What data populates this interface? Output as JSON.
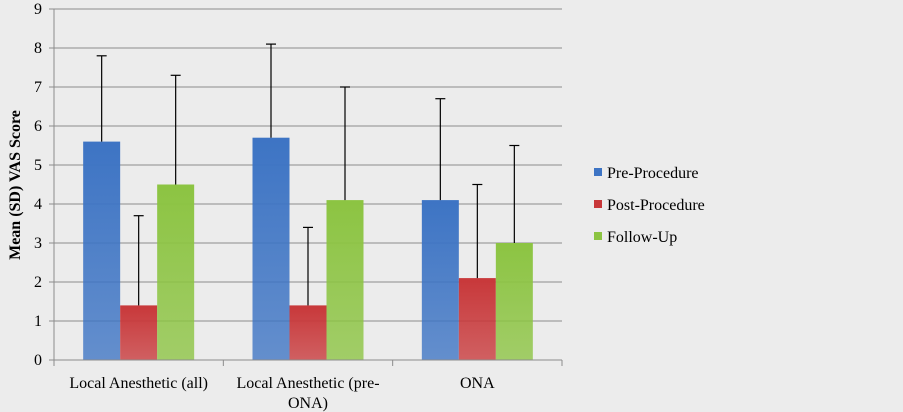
{
  "chart_data": {
    "type": "bar",
    "ylabel": "Mean (SD) VAS Score",
    "xlabel": "",
    "ylim": [
      0,
      9
    ],
    "yticks": [
      0,
      1,
      2,
      3,
      4,
      5,
      6,
      7,
      8,
      9
    ],
    "grid": true,
    "legend_position": "right",
    "categories": [
      [
        "Local Anesthetic (all)"
      ],
      [
        "Local Anesthetic (pre-",
        "ONA)"
      ],
      [
        "ONA"
      ]
    ],
    "series": [
      {
        "name": "Pre-Procedure",
        "color": "#3d74c4",
        "values": [
          5.6,
          5.7,
          4.1
        ],
        "errors": [
          2.2,
          2.4,
          2.6
        ]
      },
      {
        "name": "Post-Procedure",
        "color": "#c8383a",
        "values": [
          1.4,
          1.4,
          2.1
        ],
        "errors": [
          2.3,
          2.0,
          2.4
        ]
      },
      {
        "name": "Follow-Up",
        "color": "#8cc442",
        "values": [
          4.5,
          4.1,
          3.0
        ],
        "errors": [
          2.8,
          2.9,
          2.5
        ]
      }
    ]
  }
}
